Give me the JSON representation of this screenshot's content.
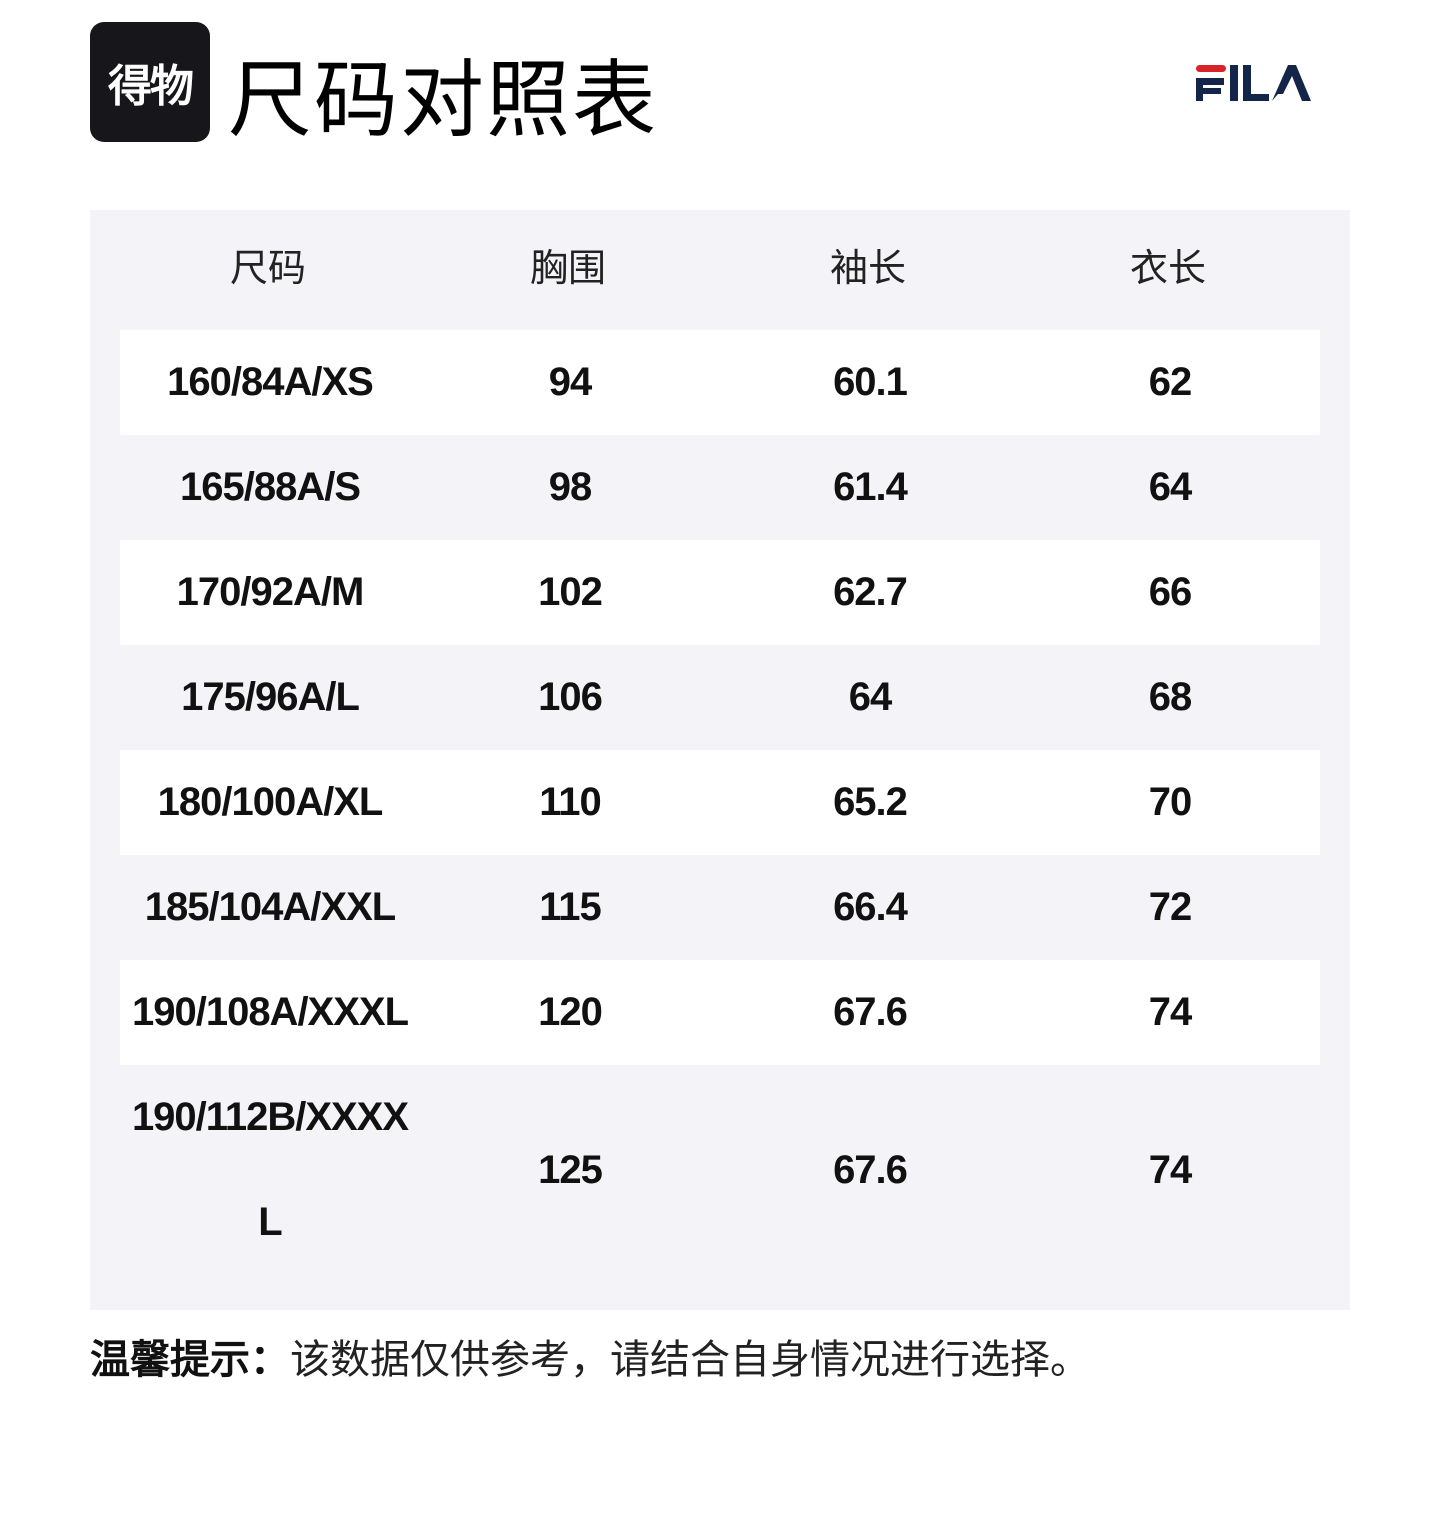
{
  "header": {
    "logo_text": "得物",
    "title": "尺码对照表",
    "brand_logo": "FILA",
    "brand_colors": {
      "red": "#d8232a",
      "navy": "#14254a"
    }
  },
  "table": {
    "columns": [
      "尺码",
      "胸围",
      "袖长",
      "衣长"
    ],
    "rows": [
      [
        "160/84A/XS",
        "94",
        "60.1",
        "62"
      ],
      [
        "165/88A/S",
        "98",
        "61.4",
        "64"
      ],
      [
        "170/92A/M",
        "102",
        "62.7",
        "66"
      ],
      [
        "175/96A/L",
        "106",
        "64",
        "68"
      ],
      [
        "180/100A/XL",
        "110",
        "65.2",
        "70"
      ],
      [
        "185/104A/XXL",
        "115",
        "66.4",
        "72"
      ],
      [
        "190/108A/XXXL",
        "120",
        "67.6",
        "74"
      ],
      [
        "190/112B/XXXXL",
        "125",
        "67.6",
        "74"
      ]
    ]
  },
  "footer": {
    "label": "温馨提示：",
    "text": "该数据仅供参考，请结合自身情况进行选择。"
  }
}
